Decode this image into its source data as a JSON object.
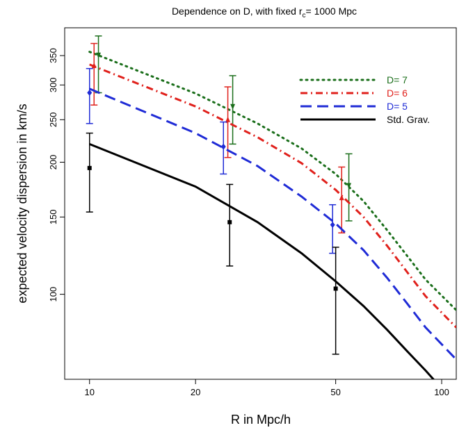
{
  "chart_data": {
    "type": "line",
    "title_prefix": "Dependence on D, with fixed r",
    "title_sub": "c",
    "title_suffix": "= 1000 Mpc",
    "xlabel": "R in Mpc/h",
    "ylabel": "expected velocity dispersion in km/s",
    "x_scale": "log",
    "y_scale": "log",
    "xlim": [
      8.5,
      110
    ],
    "ylim": [
      64,
      405
    ],
    "x_ticks": [
      10,
      20,
      50,
      100
    ],
    "y_ticks": [
      100,
      150,
      200,
      250,
      300,
      350
    ],
    "grid": false,
    "legend_position": "top-right",
    "series": [
      {
        "name": "D= 7",
        "color": "#1a6e1a",
        "dash": "dotted",
        "x": [
          10,
          20,
          30,
          40,
          50,
          60,
          70,
          80,
          90,
          110
        ],
        "y": [
          357,
          287,
          245,
          215,
          188,
          163,
          140,
          122,
          108,
          92
        ],
        "markers": {
          "shape": "triangle-down",
          "x": [
            10.6,
            25.5,
            54.5
          ],
          "y": [
            351,
            268,
            177
          ],
          "yerr_low": [
            288,
            220,
            147
          ],
          "yerr_high": [
            388,
            315,
            209
          ]
        }
      },
      {
        "name": "D= 6",
        "color": "#e0201b",
        "dash": "dashdot",
        "x": [
          10,
          20,
          30,
          40,
          50,
          60,
          70,
          80,
          90,
          110
        ],
        "y": [
          334,
          268,
          228,
          199,
          173,
          150,
          129,
          112,
          99,
          84
        ],
        "markers": {
          "shape": "triangle-up",
          "x": [
            10.3,
            24.7,
            52
          ],
          "y": [
            332,
            250,
            166
          ],
          "yerr_low": [
            270,
            205,
            138
          ],
          "yerr_high": [
            373,
            297,
            195
          ]
        }
      },
      {
        "name": "D= 5",
        "color": "#1f2bd6",
        "dash": "dashed",
        "x": [
          10,
          20,
          30,
          40,
          50,
          60,
          70,
          80,
          90,
          110
        ],
        "y": [
          294,
          233,
          196,
          167,
          145,
          126,
          109,
          95,
          84,
          71
        ],
        "markers": {
          "shape": "diamond",
          "x": [
            10,
            24,
            49
          ],
          "y": [
            288,
            217,
            144
          ],
          "yerr_low": [
            245,
            188,
            124
          ],
          "yerr_high": [
            327,
            247,
            160
          ]
        }
      },
      {
        "name": "Std. Grav.",
        "color": "#000000",
        "dash": "solid",
        "x": [
          10,
          20,
          30,
          40,
          50,
          60,
          70,
          80,
          90,
          100
        ],
        "y": [
          220,
          176,
          146,
          124,
          107,
          94,
          83,
          74,
          67,
          61
        ],
        "markers": {
          "shape": "square",
          "x": [
            10,
            25,
            50
          ],
          "y": [
            194,
            146,
            103
          ],
          "yerr_low": [
            154,
            116,
            73
          ],
          "yerr_high": [
            233,
            178,
            128
          ]
        }
      }
    ]
  }
}
